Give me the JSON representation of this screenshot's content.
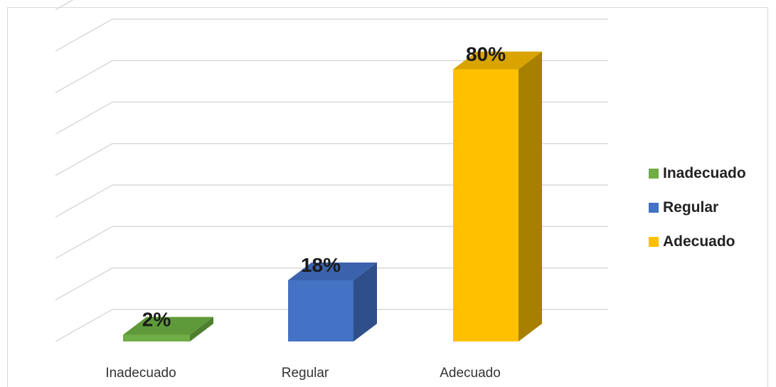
{
  "chart_data": {
    "type": "bar",
    "categories": [
      "Inadecuado",
      "Regular",
      "Adecuado"
    ],
    "values": [
      2,
      18,
      80
    ],
    "data_labels": [
      "2%",
      "18%",
      "80%"
    ],
    "title": "",
    "xlabel": "",
    "ylabel": "",
    "ylim": [
      0,
      90
    ],
    "grid": true,
    "legend_position": "right",
    "legend": [
      "Inadecuado",
      "Regular",
      "Adecuado"
    ],
    "colors": {
      "Inadecuado": {
        "front": "#70ad47",
        "top": "#5f9a3a",
        "side": "#4e7f30"
      },
      "Regular": {
        "front": "#4472c4",
        "top": "#3b63ad",
        "side": "#2e4f8a"
      },
      "Adecuado": {
        "front": "#ffc000",
        "top": "#d9a300",
        "side": "#a88000"
      }
    }
  }
}
